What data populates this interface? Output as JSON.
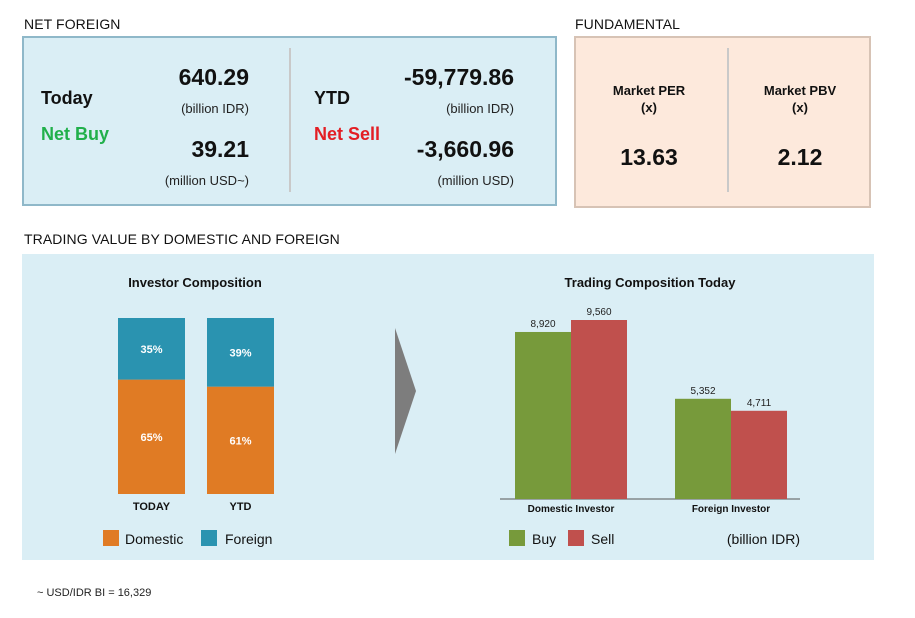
{
  "net_foreign": {
    "section_title": "NET FOREIGN",
    "today_label": "Today",
    "today_status": "Net Buy",
    "today_idr": "640.29",
    "today_idr_unit": "(billion IDR)",
    "today_usd": "39.21",
    "today_usd_unit": "(million USD~)",
    "ytd_label": "YTD",
    "ytd_status": "Net Sell",
    "ytd_idr": "-59,779.86",
    "ytd_idr_unit": "(billion IDR)",
    "ytd_usd": "-3,660.96",
    "ytd_usd_unit": "(million USD)"
  },
  "fundamental": {
    "section_title": "FUNDAMENTAL",
    "per_label": "Market PER",
    "per_unit": "(x)",
    "per_value": "13.63",
    "pbv_label": "Market PBV",
    "pbv_unit": "(x)",
    "pbv_value": "2.12"
  },
  "trading": {
    "section_title": "TRADING VALUE BY DOMESTIC AND FOREIGN",
    "legend_left": [
      "Domestic",
      "Foreign"
    ],
    "legend_right": [
      "Buy",
      "Sell"
    ],
    "unit_note": "(billion IDR)"
  },
  "colors": {
    "domestic": "#e07b24",
    "foreign": "#2a93b0",
    "buy": "#779a3b",
    "sell": "#c0504d"
  },
  "chart_data": [
    {
      "type": "bar",
      "stacked": true,
      "percent": true,
      "title": "Investor Composition",
      "categories": [
        "TODAY",
        "YTD"
      ],
      "series": [
        {
          "name": "Domestic",
          "values": [
            65,
            61
          ],
          "labels": [
            "65%",
            "61%"
          ]
        },
        {
          "name": "Foreign",
          "values": [
            35,
            39
          ],
          "labels": [
            "35%",
            "39%"
          ]
        }
      ],
      "ylim": [
        0,
        100
      ]
    },
    {
      "type": "bar",
      "title": "Trading Composition Today",
      "categories": [
        "Domestic Investor",
        "Foreign Investor"
      ],
      "series": [
        {
          "name": "Buy",
          "values": [
            8920,
            5352
          ],
          "labels": [
            "8,920",
            "5,352"
          ]
        },
        {
          "name": "Sell",
          "values": [
            9560,
            4711
          ],
          "labels": [
            "9,560",
            "4,711"
          ]
        }
      ],
      "ylim": [
        0,
        9560
      ]
    }
  ],
  "footnote": "~ USD/IDR BI = 16,329"
}
